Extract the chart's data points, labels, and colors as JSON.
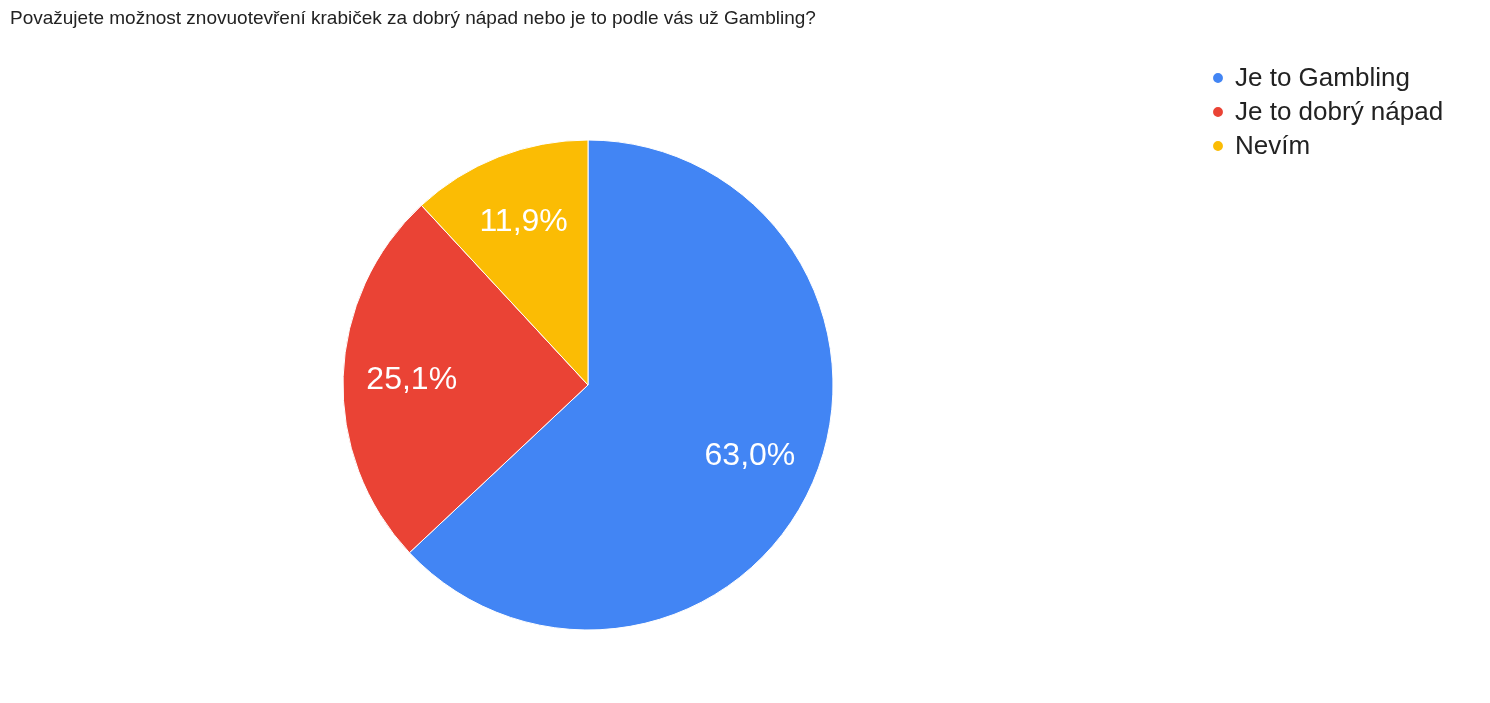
{
  "chart_data": {
    "type": "pie",
    "title": "Považujete možnost znovuotevření krabiček za dobrý nápad nebo je to podle vás už Gambling?",
    "categories": [
      "Je to Gambling",
      "Je to dobrý nápad",
      "Nevím"
    ],
    "values": [
      63.0,
      25.1,
      11.9
    ],
    "colors": [
      "#4285f4",
      "#ea4335",
      "#fbbc04"
    ],
    "value_labels": [
      "63,0%",
      "25,1%",
      "11,9%"
    ],
    "legend": "top right"
  }
}
